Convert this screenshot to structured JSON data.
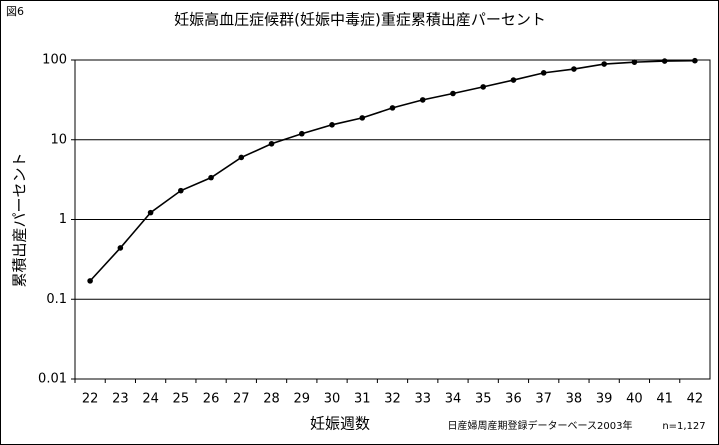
{
  "label": "図6",
  "chart_data": {
    "type": "line",
    "title": "妊娠高血圧症候群(妊娠中毒症)重症累積出産パーセント",
    "x_label": "妊娠週数",
    "y_label": "累積出産パーセント",
    "categories": [
      "22",
      "23",
      "24",
      "25",
      "26",
      "27",
      "28",
      "29",
      "30",
      "31",
      "32",
      "33",
      "34",
      "35",
      "36",
      "37",
      "38",
      "39",
      "40",
      "41",
      "42"
    ],
    "values": [
      0.17,
      0.44,
      1.22,
      2.3,
      3.35,
      6.0,
      8.9,
      11.9,
      15.4,
      18.8,
      25.1,
      31.6,
      38,
      46,
      56,
      69,
      77,
      89,
      94,
      97,
      98
    ],
    "color": "#000000",
    "ylog": true,
    "ylim": [
      0.01,
      100
    ],
    "yticks": [
      0.01,
      0.1,
      1,
      10,
      100
    ],
    "grid": true,
    "source": "日産婦周産期登録データーベース2003年",
    "note": "n=1,127"
  }
}
